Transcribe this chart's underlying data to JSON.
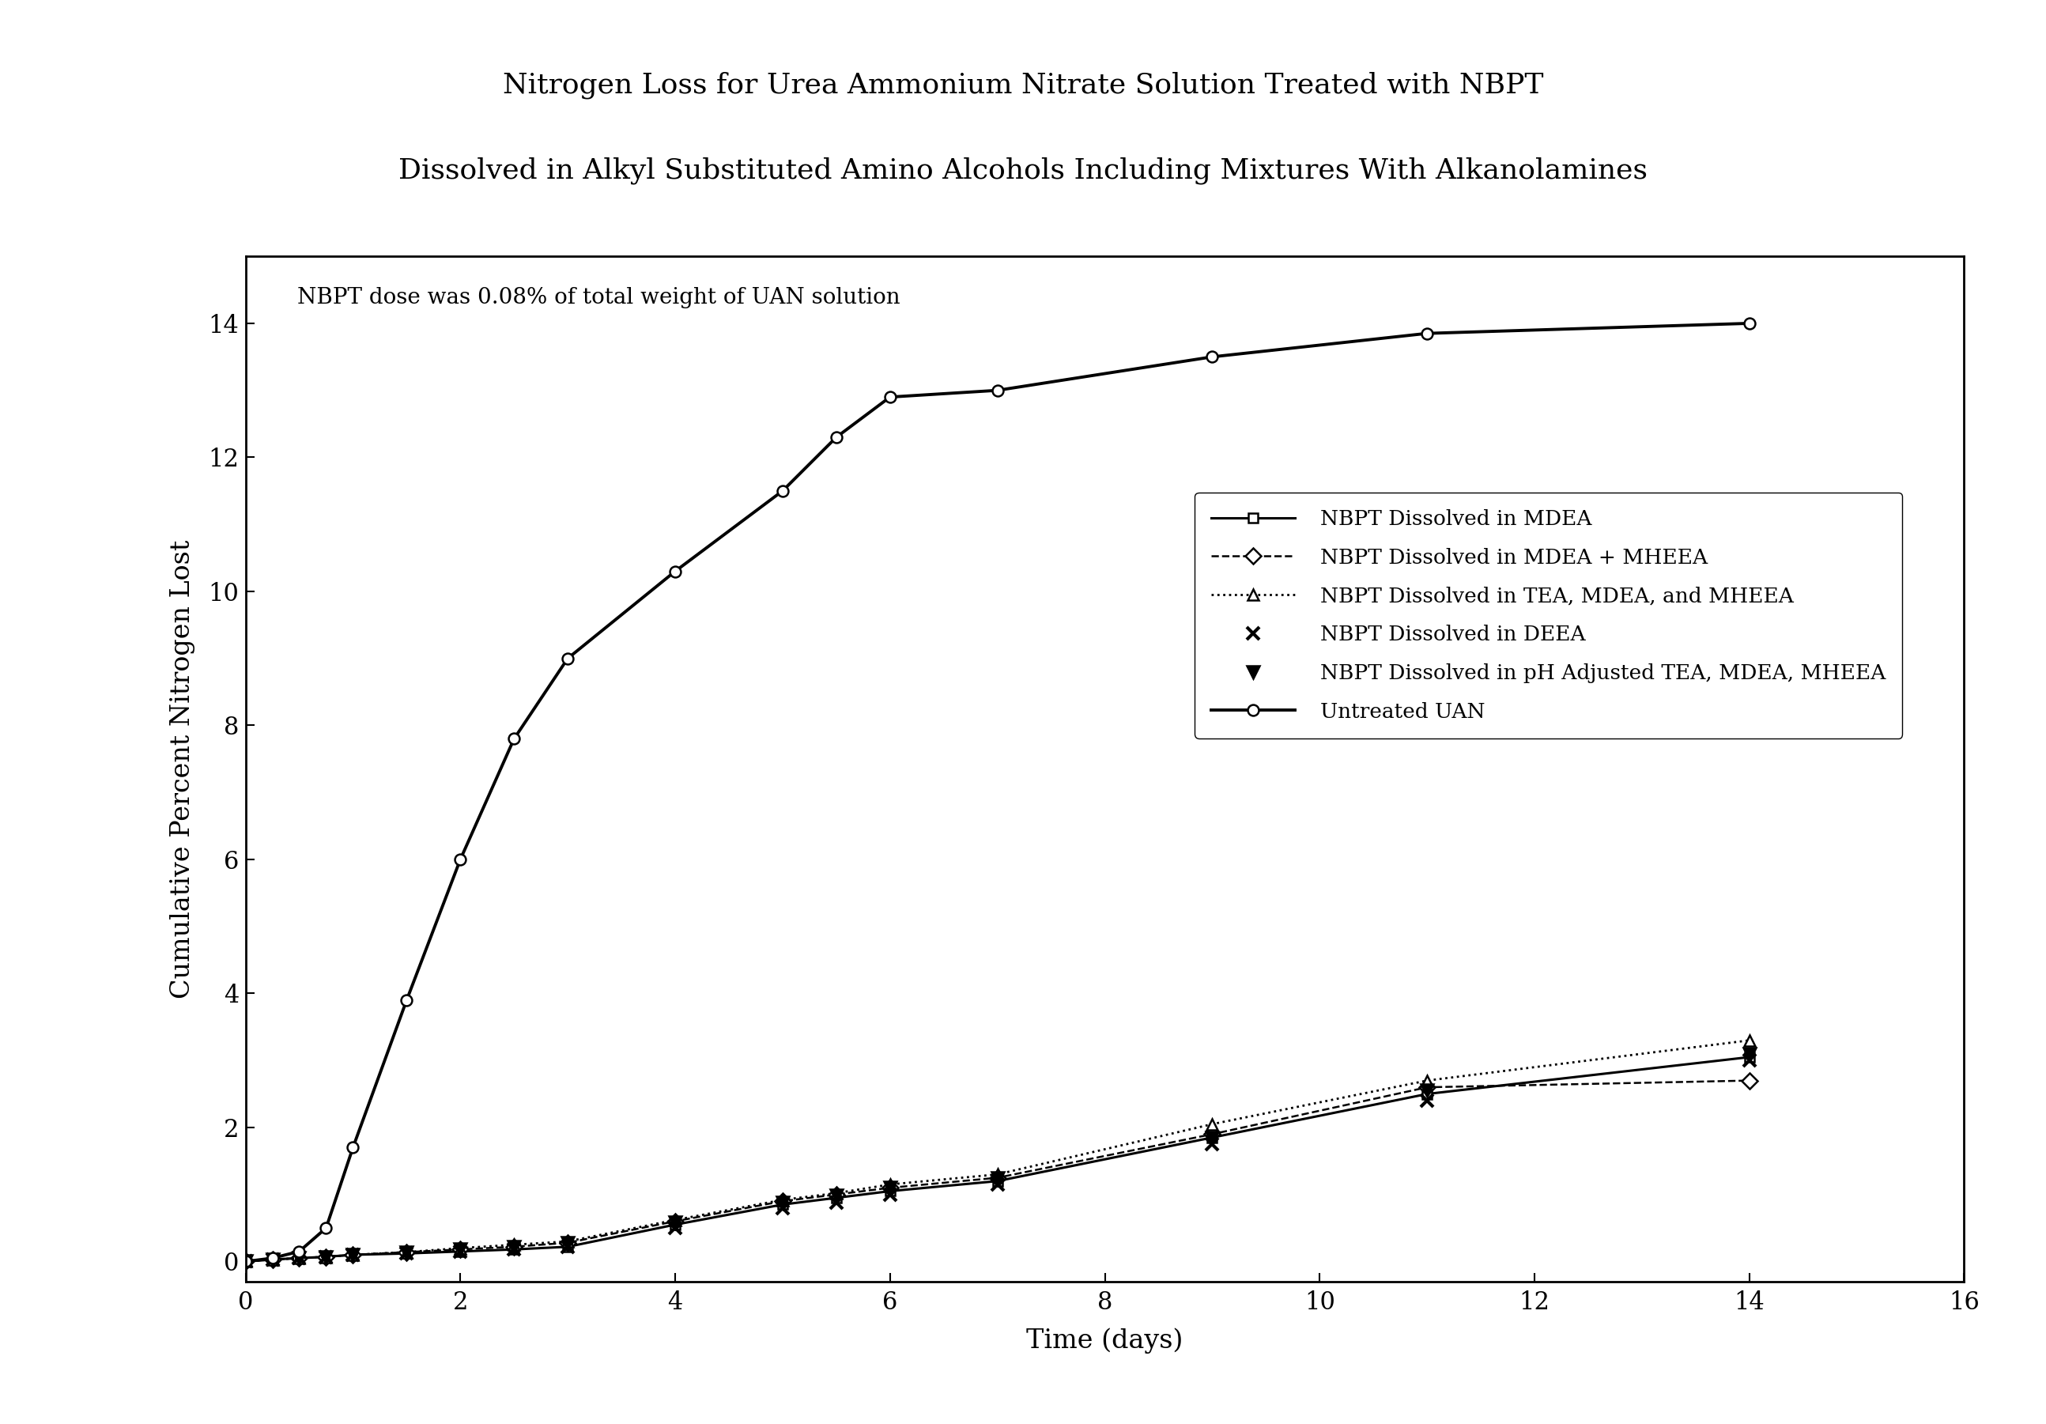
{
  "title_line1": "Nitrogen Loss for Urea Ammonium Nitrate Solution Treated with NBPT",
  "title_line2": "Dissolved in Alkyl Substituted Amino Alcohols Including Mixtures With Alkanolamines",
  "xlabel": "Time (days)",
  "ylabel": "Cumulative Percent Nitrogen Lost",
  "annotation": "NBPT dose was 0.08% of total weight of UAN solution",
  "xlim": [
    0,
    16
  ],
  "ylim": [
    -0.3,
    15.0
  ],
  "yticks": [
    0,
    2,
    4,
    6,
    8,
    10,
    12,
    14
  ],
  "xticks": [
    0,
    2,
    4,
    6,
    8,
    10,
    12,
    14,
    16
  ],
  "series": [
    {
      "label": "NBPT Dissolved in MDEA",
      "x": [
        0,
        0.25,
        0.5,
        0.75,
        1.0,
        1.5,
        2.0,
        2.5,
        3.0,
        4.0,
        5.0,
        5.5,
        6.0,
        7.0,
        9.0,
        11.0,
        14.0
      ],
      "y": [
        0,
        0.03,
        0.05,
        0.07,
        0.1,
        0.12,
        0.15,
        0.18,
        0.22,
        0.55,
        0.85,
        0.95,
        1.05,
        1.2,
        1.85,
        2.5,
        3.05
      ],
      "color": "#000000",
      "linestyle": "solid",
      "linewidth": 2.2,
      "marker": "s",
      "markersize": 9,
      "markerfacecolor": "white",
      "markeredgecolor": "#000000",
      "markeredgewidth": 1.8
    },
    {
      "label": "NBPT Dissolved in MDEA + MHEEA",
      "x": [
        0,
        0.25,
        0.5,
        0.75,
        1.0,
        1.5,
        2.0,
        2.5,
        3.0,
        4.0,
        5.0,
        5.5,
        6.0,
        7.0,
        9.0,
        11.0,
        14.0
      ],
      "y": [
        0,
        0.03,
        0.05,
        0.07,
        0.1,
        0.14,
        0.18,
        0.22,
        0.28,
        0.6,
        0.9,
        1.0,
        1.1,
        1.25,
        1.9,
        2.6,
        2.7
      ],
      "color": "#000000",
      "linestyle": "dashed",
      "linewidth": 1.8,
      "marker": "D",
      "markersize": 10,
      "markerfacecolor": "white",
      "markeredgecolor": "#000000",
      "markeredgewidth": 1.8
    },
    {
      "label": "NBPT Dissolved in TEA, MDEA, and MHEEA",
      "x": [
        0,
        0.25,
        0.5,
        0.75,
        1.0,
        1.5,
        2.0,
        2.5,
        3.0,
        4.0,
        5.0,
        5.5,
        6.0,
        7.0,
        9.0,
        11.0,
        14.0
      ],
      "y": [
        0,
        0.03,
        0.05,
        0.07,
        0.1,
        0.14,
        0.2,
        0.25,
        0.3,
        0.62,
        0.92,
        1.02,
        1.15,
        1.3,
        2.05,
        2.7,
        3.3
      ],
      "color": "#000000",
      "linestyle": "dotted",
      "linewidth": 2.0,
      "marker": "^",
      "markersize": 10,
      "markerfacecolor": "white",
      "markeredgecolor": "#000000",
      "markeredgewidth": 1.8
    },
    {
      "label": "NBPT Dissolved in DEEA",
      "x": [
        0,
        0.25,
        0.5,
        0.75,
        1.0,
        1.5,
        2.0,
        2.5,
        3.0,
        4.0,
        5.0,
        5.5,
        6.0,
        7.0,
        9.0,
        11.0,
        14.0
      ],
      "y": [
        0,
        0.03,
        0.05,
        0.07,
        0.1,
        0.12,
        0.15,
        0.18,
        0.22,
        0.5,
        0.8,
        0.88,
        1.0,
        1.15,
        1.75,
        2.4,
        3.0
      ],
      "color": "#000000",
      "linestyle": "none",
      "linewidth": 0,
      "marker": "x",
      "markersize": 12,
      "markerfacecolor": "#000000",
      "markeredgecolor": "#000000",
      "markeredgewidth": 3.0
    },
    {
      "label": "NBPT Dissolved in pH Adjusted TEA, MDEA, MHEEA",
      "x": [
        0,
        0.25,
        0.5,
        0.75,
        1.0,
        1.5,
        2.0,
        2.5,
        3.0,
        4.0,
        5.0,
        5.5,
        6.0,
        7.0,
        9.0,
        11.0,
        14.0
      ],
      "y": [
        0,
        0.03,
        0.05,
        0.07,
        0.1,
        0.14,
        0.18,
        0.22,
        0.28,
        0.58,
        0.88,
        0.98,
        1.1,
        1.25,
        1.85,
        2.55,
        3.1
      ],
      "color": "#000000",
      "linestyle": "none",
      "linewidth": 0,
      "marker": "v",
      "markersize": 11,
      "markerfacecolor": "#000000",
      "markeredgecolor": "#000000",
      "markeredgewidth": 1.8
    },
    {
      "label": "Untreated UAN",
      "x": [
        0,
        0.25,
        0.5,
        0.75,
        1.0,
        1.5,
        2.0,
        2.5,
        3.0,
        4.0,
        5.0,
        5.5,
        6.0,
        7.0,
        9.0,
        11.0,
        14.0
      ],
      "y": [
        0,
        0.05,
        0.15,
        0.5,
        1.7,
        3.9,
        6.0,
        7.8,
        9.0,
        10.3,
        11.5,
        12.3,
        12.9,
        13.0,
        13.5,
        13.85,
        14.0
      ],
      "color": "#000000",
      "linestyle": "solid",
      "linewidth": 2.8,
      "marker": "o",
      "markersize": 10,
      "markerfacecolor": "white",
      "markeredgecolor": "#000000",
      "markeredgewidth": 1.8
    }
  ],
  "background_color": "#ffffff",
  "title_fontsize": 26,
  "label_fontsize": 24,
  "tick_fontsize": 22,
  "legend_fontsize": 19,
  "annotation_fontsize": 20
}
